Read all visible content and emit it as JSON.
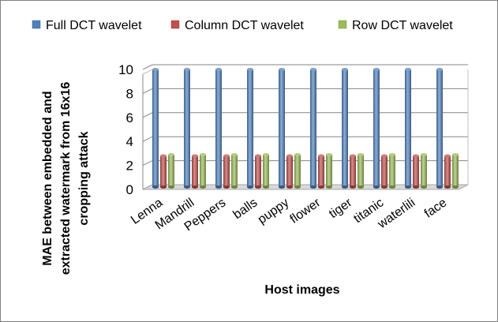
{
  "chart_data": {
    "type": "bar",
    "title": "",
    "xlabel": "Host images",
    "ylabel": "MAE between embedded and extracted watermark from 16x16 cropping attack",
    "ylabel_lines": [
      "MAE between embedded and",
      "extracted watermark from 16x16",
      "cropping attack"
    ],
    "ylim": [
      0,
      10
    ],
    "yticks": [
      0,
      2,
      4,
      6,
      8,
      10
    ],
    "grid": true,
    "legend_position": "top",
    "bar_style": "3d-cylinder",
    "categories": [
      "Lenna",
      "Mandrill",
      "Peppers",
      "balls",
      "puppy",
      "flower",
      "tiger",
      "titanic",
      "waterlili",
      "face"
    ],
    "series": [
      {
        "name": "Full DCT wavelet",
        "color": "#4f81bd",
        "values": [
          9.8,
          9.8,
          9.8,
          9.8,
          9.8,
          9.8,
          9.8,
          9.8,
          9.8,
          9.8
        ]
      },
      {
        "name": "Column DCT wavelet",
        "color": "#c0504d",
        "values": [
          2.6,
          2.6,
          2.6,
          2.6,
          2.6,
          2.6,
          2.6,
          2.6,
          2.6,
          2.6
        ]
      },
      {
        "name": "Row DCT wavelet",
        "color": "#9bbb59",
        "values": [
          2.7,
          2.7,
          2.7,
          2.7,
          2.7,
          2.7,
          2.7,
          2.7,
          2.7,
          2.7
        ]
      }
    ]
  }
}
